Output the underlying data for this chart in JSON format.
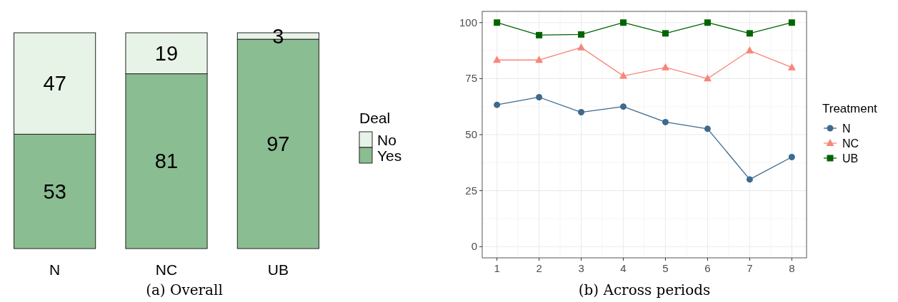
{
  "chart_data": [
    {
      "type": "bar",
      "title": "(a) Overall",
      "categories": [
        "N",
        "NC",
        "UB"
      ],
      "stacked": true,
      "data_labels": true,
      "ylim": [
        0,
        100
      ],
      "tick_labels": "x",
      "legend": "right",
      "legend_title": "Deal",
      "series": [
        {
          "name": "Yes",
          "color": "#8abd91",
          "values": [
            53,
            81,
            97
          ]
        },
        {
          "name": "No",
          "color": "#e8f3e8",
          "values": [
            47,
            19,
            3
          ]
        }
      ]
    },
    {
      "type": "line",
      "title": "(b) Across periods",
      "x": [
        1,
        2,
        3,
        4,
        5,
        6,
        7,
        8
      ],
      "xlim": [
        0.65,
        8.35
      ],
      "xticks": [
        1,
        2,
        3,
        4,
        5,
        6,
        7,
        8
      ],
      "ylim": [
        -5,
        105
      ],
      "yticks": [
        0,
        25,
        50,
        75,
        100
      ],
      "grid": true,
      "legend": "right",
      "legend_title": "Treatment",
      "series": [
        {
          "name": "N",
          "color": "#3d6a8f",
          "marker": "circle",
          "values": [
            63.3,
            66.7,
            60,
            62.5,
            55.6,
            52.6,
            30,
            40
          ]
        },
        {
          "name": "NC",
          "color": "#f8867a",
          "marker": "triangle",
          "values": [
            83.3,
            83.3,
            88.9,
            76.2,
            80,
            75,
            87.5,
            80
          ]
        },
        {
          "name": "UB",
          "color": "#006400",
          "marker": "square",
          "values": [
            100,
            94.4,
            94.7,
            100,
            95.2,
            100,
            95.2,
            100
          ]
        }
      ]
    }
  ]
}
